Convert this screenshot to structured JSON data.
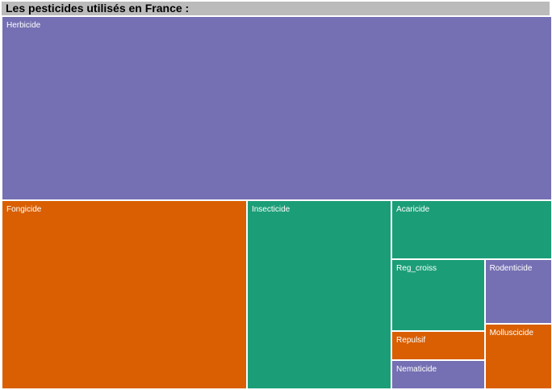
{
  "chart_data": {
    "type": "treemap",
    "title": "Les pesticides utilisés en France :",
    "categories": [
      "Herbicide",
      "Fongicide",
      "Insecticide",
      "Acaricide",
      "Reg_croiss",
      "Rodenticide",
      "Repulsif",
      "Nematicide",
      "Molluscicide"
    ],
    "values": [
      60,
      27.5,
      16.2,
      5.6,
      4.0,
      2.6,
      1.6,
      1.6,
      2.6
    ],
    "colors": [
      "#7570b3",
      "#d95f02",
      "#1b9e77",
      "#1b9e77",
      "#1b9e77",
      "#7570b3",
      "#d95f02",
      "#7570b3",
      "#d95f02"
    ],
    "legend": "none",
    "grid": false
  }
}
